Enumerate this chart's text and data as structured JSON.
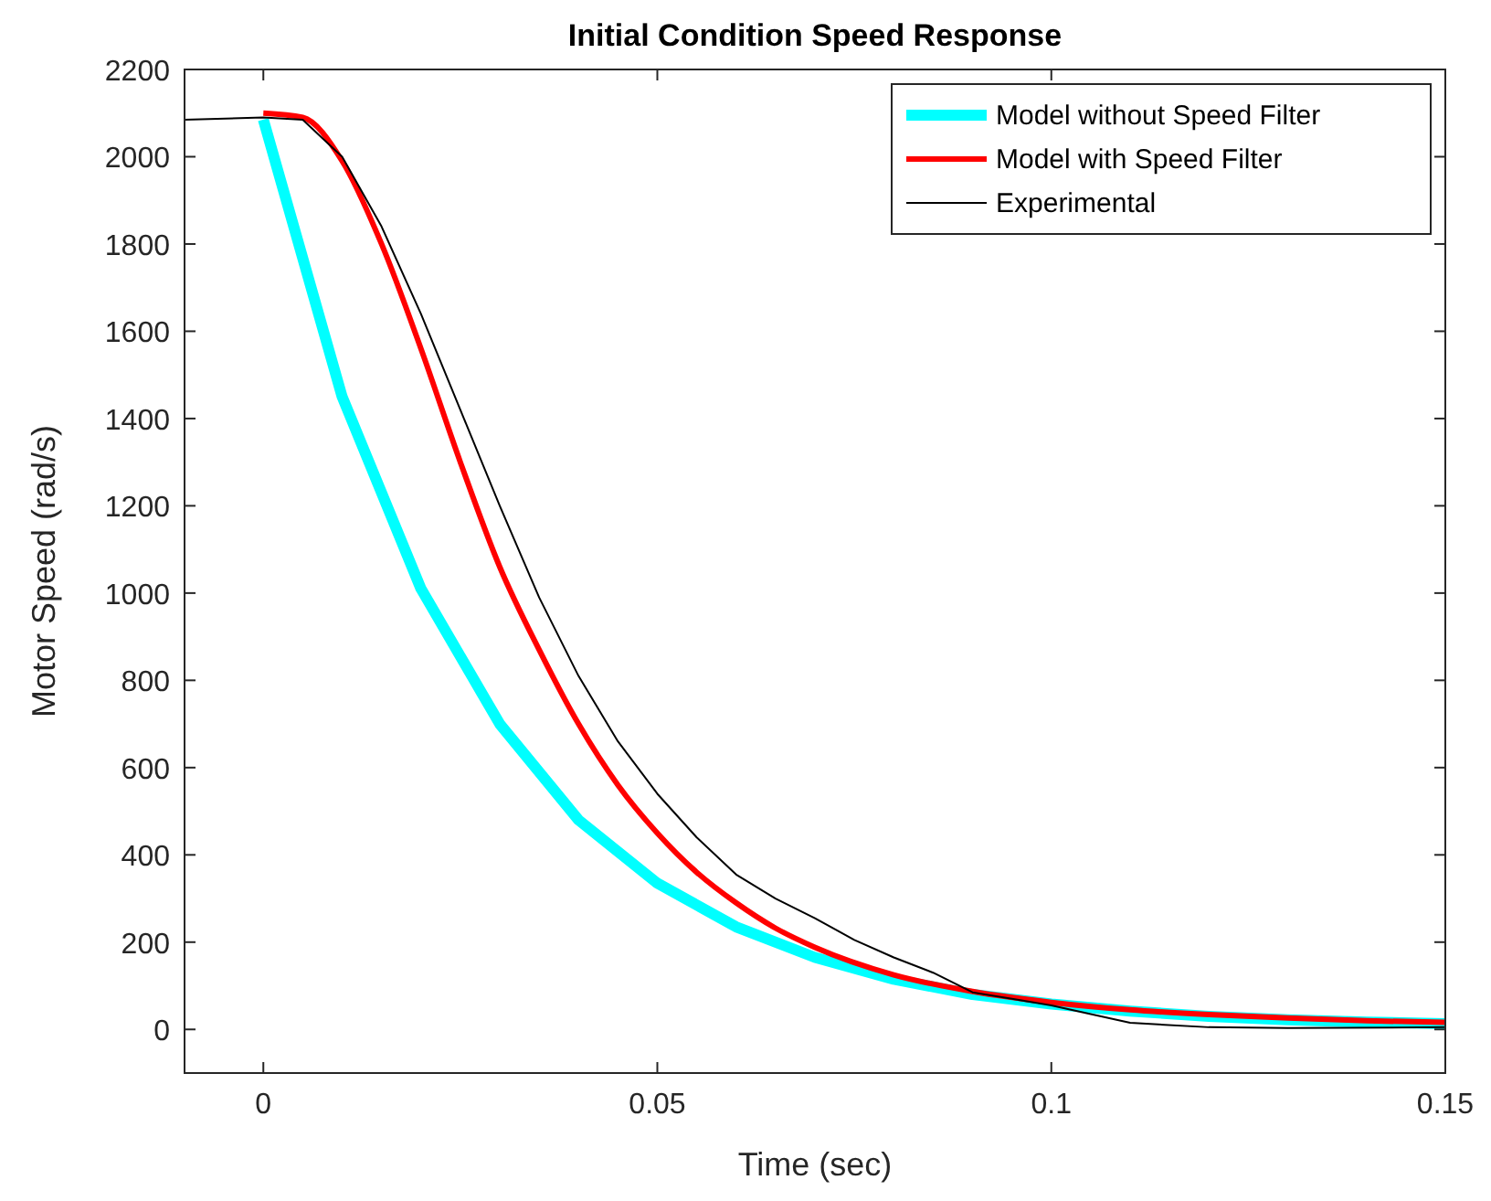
{
  "chart_data": {
    "type": "line",
    "title": "Initial Condition Speed Response",
    "xlabel": "Time (sec)",
    "ylabel": "Motor Speed (rad/s)",
    "xlim": [
      -0.01,
      0.15
    ],
    "xticks": [
      0,
      0.05,
      0.1,
      0.15
    ],
    "ylim": [
      -100,
      2200
    ],
    "yticks": [
      0,
      200,
      400,
      600,
      800,
      1000,
      1200,
      1400,
      1600,
      1800,
      2000,
      2200
    ],
    "grid": false,
    "legend": "top right",
    "marker": "none",
    "line_style": "solid",
    "series": [
      {
        "name": "Model without Speed Filter",
        "color": "#00ffff",
        "x": [
          0,
          0.01,
          0.02,
          0.03,
          0.04,
          0.05,
          0.06,
          0.07,
          0.08,
          0.09,
          0.1,
          0.11,
          0.12,
          0.13,
          0.14,
          0.15
        ],
        "values": [
          2085,
          1450,
          1010,
          700,
          480,
          335,
          235,
          165,
          115,
          80,
          58,
          42,
          30,
          22,
          17,
          13
        ]
      },
      {
        "name": "Model with Speed Filter",
        "color": "#ff0000",
        "x": [
          0,
          0.005,
          0.01,
          0.015,
          0.02,
          0.025,
          0.03,
          0.035,
          0.04,
          0.045,
          0.05,
          0.055,
          0.06,
          0.065,
          0.07,
          0.08,
          0.09,
          0.1,
          0.11,
          0.12,
          0.13,
          0.14,
          0.15
        ],
        "values": [
          2100,
          2090,
          1990,
          1800,
          1560,
          1300,
          1060,
          870,
          700,
          560,
          450,
          360,
          290,
          232,
          188,
          125,
          87,
          62,
          45,
          34,
          26,
          20,
          16
        ]
      },
      {
        "name": "Experimental",
        "color": "#000000",
        "x": [
          -0.01,
          0,
          0.005,
          0.01,
          0.015,
          0.02,
          0.025,
          0.03,
          0.035,
          0.04,
          0.045,
          0.05,
          0.055,
          0.06,
          0.065,
          0.07,
          0.075,
          0.08,
          0.085,
          0.09,
          0.095,
          0.1,
          0.105,
          0.11,
          0.12,
          0.13,
          0.15
        ],
        "values": [
          2085,
          2090,
          2085,
          2000,
          1840,
          1640,
          1420,
          1200,
          990,
          810,
          660,
          540,
          440,
          355,
          300,
          255,
          205,
          165,
          130,
          85,
          70,
          55,
          35,
          15,
          5,
          3,
          5
        ]
      }
    ]
  }
}
